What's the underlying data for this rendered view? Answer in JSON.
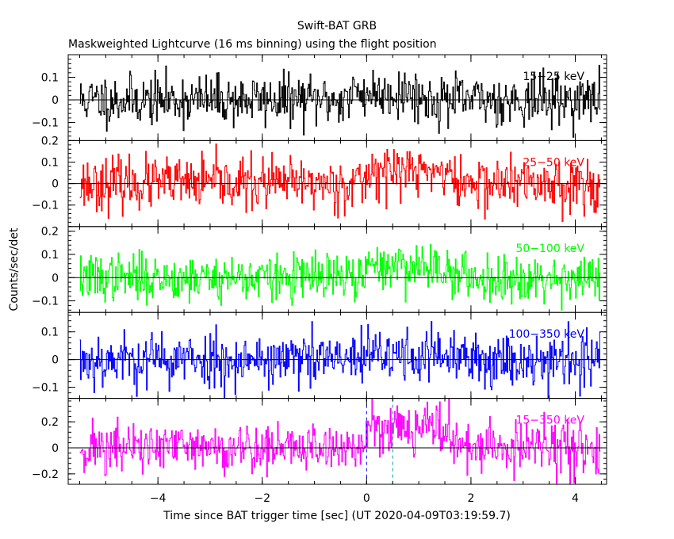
{
  "title_line1": "Swift-BAT GRB",
  "title_line2": "Maskweighted Lightcurve (16 ms binning) using the flight position",
  "ylabel": "Counts/sec/det",
  "xlabel": "Time since BAT trigger time [sec] (UT 2020-04-09T03:19:59.7)",
  "chart_data": {
    "type": "line",
    "binning_sec": 0.016,
    "x_range": [
      -5.72,
      4.6
    ],
    "x_ticks": [
      -4,
      -2,
      0,
      2,
      4
    ],
    "x_tick_labels": [
      "−4",
      "−2",
      "0",
      "2",
      "4"
    ],
    "data_start": -5.5,
    "data_end": 4.49,
    "vertical_markers": [
      0,
      0.5
    ],
    "panels": [
      {
        "name": "15-25 keV",
        "label": "15−25 keV",
        "color": "#000000",
        "ylim": [
          -0.18,
          0.2
        ],
        "yticks": [
          -0.1,
          0,
          0.1
        ],
        "ytick_labels": [
          "−0.1",
          "0",
          "0.1"
        ],
        "noise_sigma": 0.055,
        "signal": [
          0,
          0,
          0.03
        ],
        "seed": 11
      },
      {
        "name": "25-50 keV",
        "label": "25−50 keV",
        "color": "#ff0000",
        "ylim": [
          -0.2,
          0.2
        ],
        "yticks": [
          -0.1,
          0,
          0.1,
          0.2
        ],
        "ytick_labels": [
          "−0.1",
          "0",
          "0.1",
          "0.2"
        ],
        "noise_sigma": 0.06,
        "signal": [
          0,
          1.0,
          0.06
        ],
        "seed": 23
      },
      {
        "name": "50-100 keV",
        "label": "50−100 keV",
        "color": "#00ff00",
        "ylim": [
          -0.15,
          0.22
        ],
        "yticks": [
          -0.1,
          0,
          0.1,
          0.2
        ],
        "ytick_labels": [
          "−0.1",
          "0",
          "0.1",
          "0.2"
        ],
        "noise_sigma": 0.05,
        "signal": [
          0,
          1.0,
          0.05
        ],
        "seed": 37
      },
      {
        "name": "100-350 keV",
        "label": "100−350 keV",
        "color": "#0000ff",
        "ylim": [
          -0.14,
          0.17
        ],
        "yticks": [
          -0.1,
          0,
          0.1
        ],
        "ytick_labels": [
          "−0.1",
          "0",
          "0.1"
        ],
        "noise_sigma": 0.05,
        "signal": [
          0,
          1.0,
          0.015
        ],
        "seed": 53
      },
      {
        "name": "15-350 keV",
        "label": "15−350 keV",
        "color": "#ff00ff",
        "ylim": [
          -0.28,
          0.38
        ],
        "yticks": [
          -0.2,
          0,
          0.2
        ],
        "ytick_labels": [
          "−0.2",
          "0",
          "0.2"
        ],
        "noise_sigma": 0.1,
        "signal": [
          0,
          1.0,
          0.17
        ],
        "seed": 71
      }
    ]
  }
}
